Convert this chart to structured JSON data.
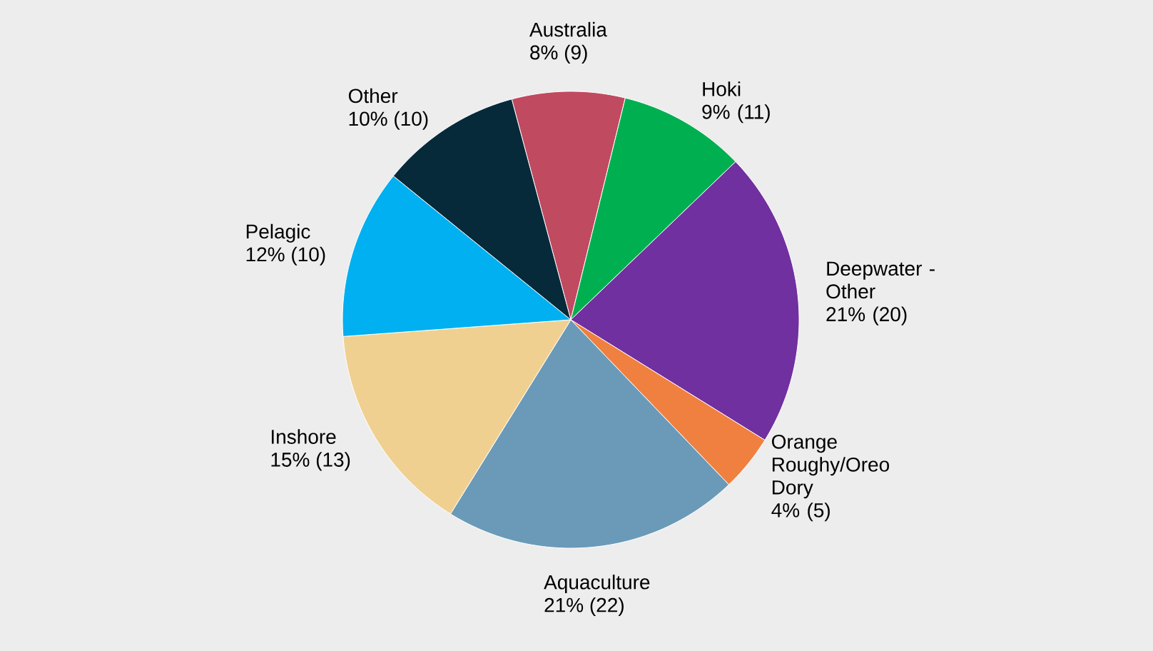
{
  "chart_data": {
    "type": "pie",
    "categories": [
      "Australia",
      "Hoki",
      "Deepwater - Other",
      "Orange Roughy/Oreo Dory",
      "Aquaculture",
      "Inshore",
      "Pelagic",
      "Other"
    ],
    "values": [
      8,
      9,
      21,
      4,
      21,
      15,
      12,
      10
    ],
    "value_labels": [
      "8% (9)",
      "9% (11)",
      "21% (20)",
      "4% (5)",
      "21% (22)",
      "15% (13)",
      "12% (10)",
      "10% (10)"
    ],
    "colors": [
      "#c04a60",
      "#00b050",
      "#7030a0",
      "#f08040",
      "#6a9ab8",
      "#f0d090",
      "#00b0f0",
      "#062a3a"
    ]
  }
}
